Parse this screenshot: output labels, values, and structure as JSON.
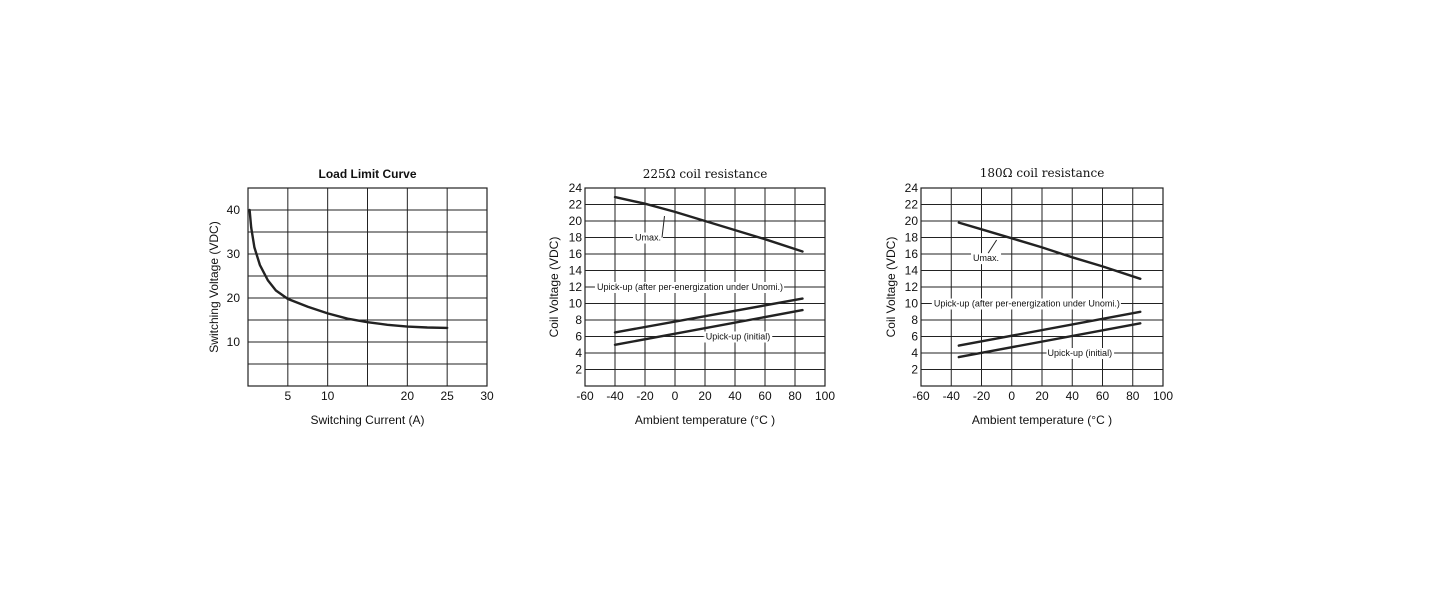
{
  "chart_data": [
    {
      "type": "line",
      "title": "Load Limit Curve",
      "xlabel": "Switching Current (A)",
      "ylabel": "Switching Voltage (VDC)",
      "xlim": [
        0,
        30
      ],
      "ylim": [
        0,
        45
      ],
      "x_ticks": [
        5,
        10,
        20,
        25,
        30
      ],
      "y_ticks": [
        10,
        20,
        30,
        40
      ],
      "x_grid": [
        0,
        5,
        10,
        15,
        20,
        25,
        30
      ],
      "y_grid": [
        0,
        5,
        10,
        15,
        20,
        25,
        30,
        35,
        40,
        45
      ],
      "grid": true,
      "series": [
        {
          "x": [
            0.2,
            0.4,
            0.8,
            1.5,
            2.5,
            3.5,
            5,
            7.5,
            10,
            12.5,
            15,
            17.5,
            20,
            22.5,
            25
          ],
          "values": [
            40,
            36,
            31.5,
            27.5,
            24,
            21.7,
            19.8,
            18,
            16.5,
            15.3,
            14.5,
            13.9,
            13.5,
            13.3,
            13.2
          ]
        }
      ],
      "annotations": []
    },
    {
      "type": "line",
      "title": "225Ω coil resistance",
      "xlabel": "Ambient temperature (°C )",
      "ylabel": "Coil Voltage (VDC)",
      "xlim": [
        -60,
        100
      ],
      "ylim": [
        0,
        24
      ],
      "x_ticks": [
        "-60",
        "-40",
        "-20",
        "0",
        "20",
        "40",
        "60",
        "80",
        "100"
      ],
      "y_ticks": [
        2,
        4,
        6,
        8,
        10,
        12,
        14,
        16,
        18,
        20,
        22,
        24
      ],
      "grid": true,
      "series": [
        {
          "x": [
            -40,
            -20,
            0,
            20,
            40,
            60,
            85
          ],
          "values": [
            22.9,
            22.1,
            21.1,
            20.0,
            18.9,
            17.8,
            16.3
          ]
        },
        {
          "x": [
            -40,
            85
          ],
          "values": [
            6.5,
            10.6
          ]
        },
        {
          "x": [
            -40,
            85
          ],
          "values": [
            5.0,
            9.2
          ]
        }
      ],
      "annotations": [
        {
          "text": "Umax.",
          "x": -18,
          "y": 18,
          "leader_to": [
            -7,
            20.6
          ]
        },
        {
          "text": "Upick-up (after per-energization under Unomi.)",
          "x": 10,
          "y": 12,
          "leader_to": [
            80,
            12
          ]
        },
        {
          "text": "Upick-up (initial)",
          "x": 42,
          "y": 6,
          "leader_to": [
            20,
            6
          ]
        }
      ]
    },
    {
      "type": "line",
      "title": "180Ω coil resistance",
      "xlabel": "Ambient temperature (°C )",
      "ylabel": "Coil Voltage (VDC)",
      "xlim": [
        -60,
        100
      ],
      "ylim": [
        0,
        24
      ],
      "x_ticks": [
        "-60",
        "-40",
        "-20",
        "0",
        "20",
        "40",
        "60",
        "80",
        "100"
      ],
      "y_ticks": [
        2,
        4,
        6,
        8,
        10,
        12,
        14,
        16,
        18,
        20,
        22,
        24
      ],
      "grid": true,
      "series": [
        {
          "x": [
            -35,
            -20,
            0,
            20,
            40,
            60,
            85
          ],
          "values": [
            19.8,
            19.0,
            17.9,
            16.8,
            15.6,
            14.5,
            13.0
          ]
        },
        {
          "x": [
            -35,
            85
          ],
          "values": [
            4.9,
            9.0
          ]
        },
        {
          "x": [
            -35,
            85
          ],
          "values": [
            3.5,
            7.6
          ]
        }
      ],
      "annotations": [
        {
          "text": "Umax.",
          "x": -17,
          "y": 15.5,
          "leader_to": [
            -10,
            17.7
          ]
        },
        {
          "text": "Upick-up (after per-energization under Unomi.)",
          "x": 10,
          "y": 10,
          "leader_to": [
            80,
            10
          ]
        },
        {
          "text": "Upick-up (initial)",
          "x": 45,
          "y": 4,
          "leader_to": [
            20,
            4
          ]
        }
      ]
    }
  ]
}
